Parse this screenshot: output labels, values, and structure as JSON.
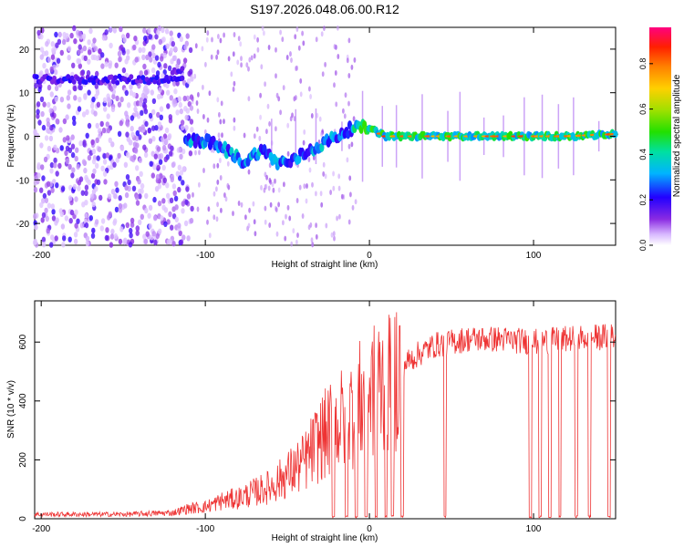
{
  "title": "S197.2026.048.06.00.R12",
  "chart_data": [
    {
      "type": "heatmap",
      "name": "spectrogram",
      "xlabel": "Height of straight line (km)",
      "ylabel": "Frequency (Hz)",
      "xlim": [
        -204,
        150
      ],
      "ylim": [
        -25,
        25
      ],
      "xticks": [
        -200,
        -100,
        0,
        100
      ],
      "yticks": [
        -20,
        -10,
        0,
        10,
        20
      ],
      "ridge": {
        "x": [
          -112,
          -100,
          -88,
          -76,
          -66,
          -56,
          -48,
          -40,
          -30,
          -20,
          -10,
          0,
          10,
          30,
          60,
          90,
          120,
          150
        ],
        "y": [
          -1,
          -1,
          -3,
          -6,
          -3,
          -6,
          -6,
          -4,
          -2,
          0,
          2,
          2,
          0,
          0,
          0,
          0,
          0,
          0.5
        ]
      },
      "bands": [
        {
          "x0": -204,
          "x1": -113,
          "y": 13,
          "note": "band near +13 Hz"
        },
        {
          "x0": -120,
          "x1": -113,
          "y": 15
        }
      ],
      "colorbar": {
        "label": "Normalized spectral amplitude",
        "ticks": [
          0.0,
          0.2,
          0.4,
          0.6,
          0.8
        ],
        "tick_labels": [
          "0.0",
          "0.2",
          "0.4",
          "0.6",
          "0.8"
        ],
        "range": [
          0,
          0.96
        ]
      }
    },
    {
      "type": "line",
      "name": "snr",
      "xlabel": "Height of straight line (km)",
      "ylabel": "SNR (10 * v/v)",
      "xlim": [
        -204,
        150
      ],
      "ylim": [
        0,
        740
      ],
      "xticks": [
        -200,
        -100,
        0,
        100
      ],
      "yticks": [
        0,
        200,
        400,
        600
      ],
      "color": "#ee3333",
      "envelope": {
        "x": [
          -204,
          -150,
          -120,
          -110,
          -100,
          -90,
          -80,
          -70,
          -60,
          -50,
          -40,
          -30,
          -20,
          -10,
          0,
          10,
          20,
          30,
          40,
          60,
          80,
          100,
          120,
          150
        ],
        "y": [
          15,
          15,
          20,
          35,
          40,
          60,
          70,
          90,
          110,
          150,
          190,
          270,
          320,
          370,
          430,
          470,
          520,
          560,
          590,
          610,
          610,
          600,
          610,
          620
        ]
      },
      "dropouts_x": [
        -22,
        -14,
        -8,
        -2,
        4,
        10,
        14,
        20,
        46,
        98,
        104,
        110,
        116,
        126,
        134,
        146
      ]
    }
  ]
}
